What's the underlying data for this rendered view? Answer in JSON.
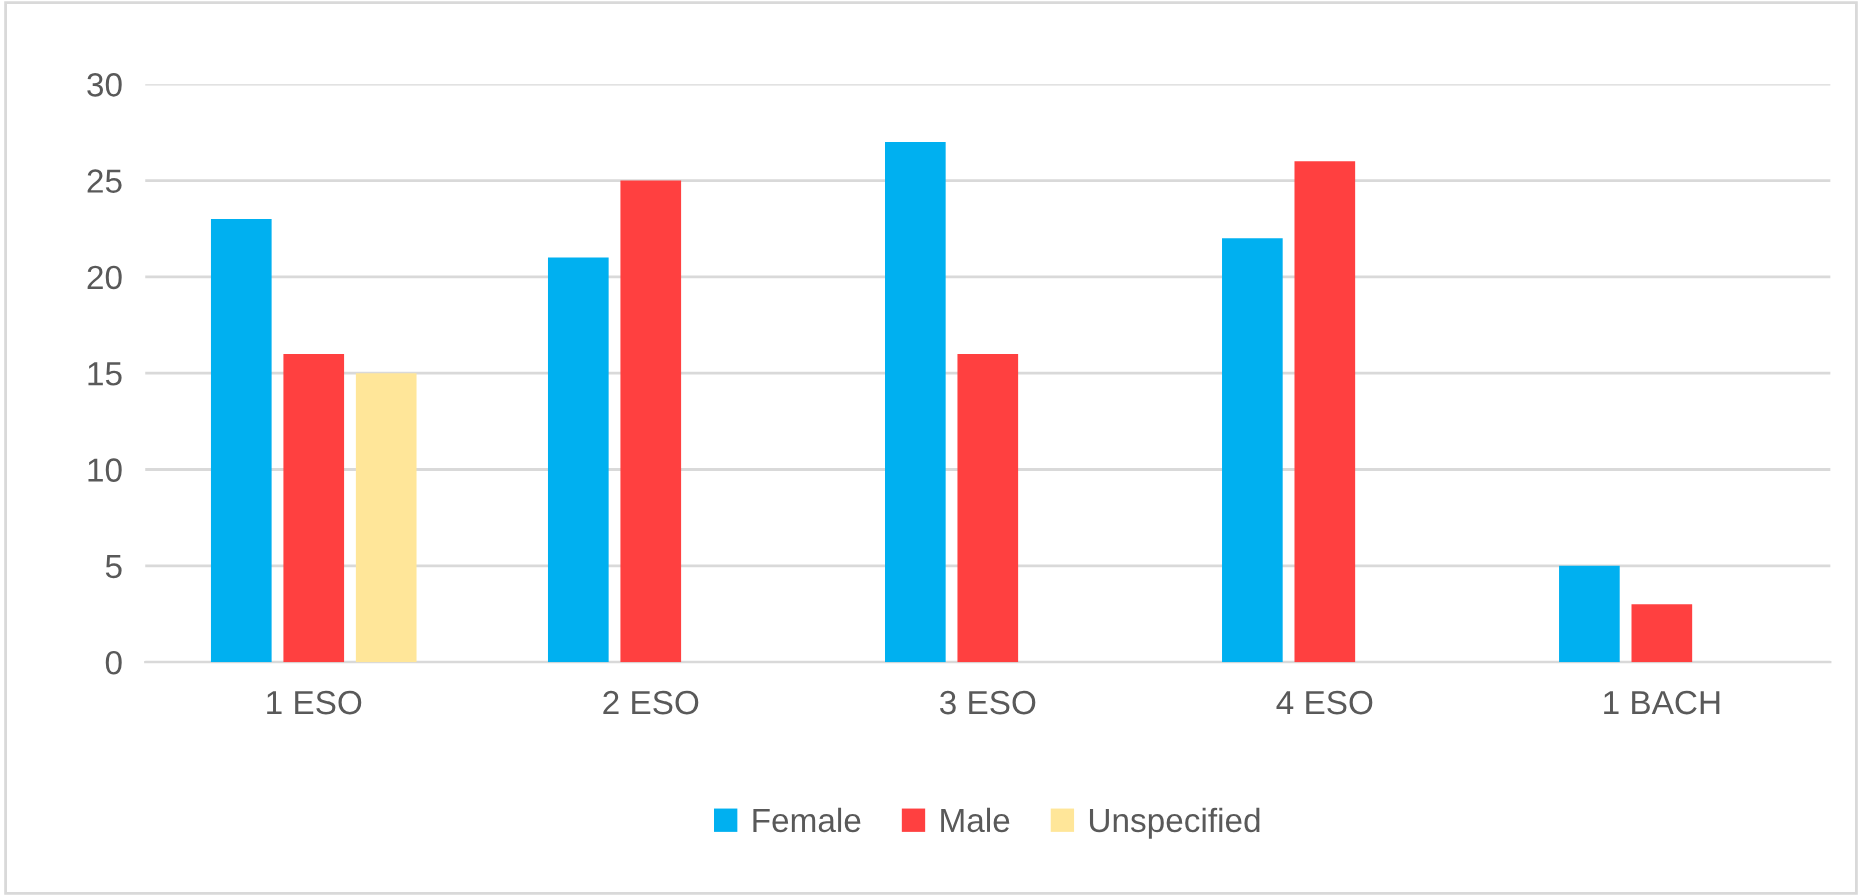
{
  "chart_data": {
    "type": "bar",
    "categories": [
      "1 ESO",
      "2 ESO",
      "3 ESO",
      "4 ESO",
      "1 BACH"
    ],
    "series": [
      {
        "name": "Female",
        "color": "#00b0f0",
        "values": [
          23,
          21,
          27,
          22,
          5
        ]
      },
      {
        "name": "Male",
        "color": "#ff4040",
        "values": [
          16,
          25,
          16,
          26,
          3
        ]
      },
      {
        "name": "Unspecified",
        "color": "#ffe699",
        "values": [
          15,
          null,
          null,
          null,
          null
        ]
      }
    ],
    "ylim": [
      0,
      30
    ],
    "yticks": [
      0,
      5,
      10,
      15,
      20,
      25,
      30
    ],
    "grid": "y",
    "legend": "bottom"
  }
}
